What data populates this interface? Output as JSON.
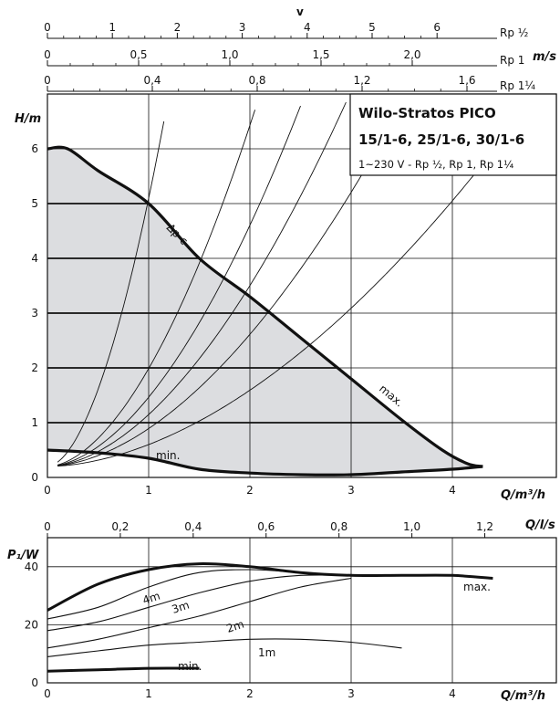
{
  "chart_data": {
    "velocity_scales": {
      "title": "v",
      "unit": "m/s",
      "scales": [
        {
          "pipe": "Rp ½",
          "ticks": [
            "0",
            "1",
            "2",
            "3",
            "4",
            "5",
            "6"
          ]
        },
        {
          "pipe": "Rp 1",
          "ticks": [
            "0",
            "0,5",
            "1,0",
            "1,5",
            "2,0"
          ]
        },
        {
          "pipe": "Rp 1¼",
          "ticks": [
            "0",
            "0,4",
            "0,8",
            "1,2",
            "1,6"
          ]
        }
      ]
    },
    "head_chart": {
      "title_lines": [
        "Wilo-Stratos PICO",
        "15/1-6, 25/1-6, 30/1-6",
        "1~230 V - Rp ½, Rp 1, Rp 1¼"
      ],
      "xlabel": "Q/m³/h",
      "ylabel": "H/m",
      "xlim": [
        0,
        5
      ],
      "ylim": [
        0,
        7
      ],
      "xticks": [
        "0",
        "1",
        "2",
        "3",
        "4"
      ],
      "yticks": [
        "0",
        "1",
        "2",
        "3",
        "4",
        "5",
        "6"
      ],
      "max_curve": [
        [
          0,
          6
        ],
        [
          0.2,
          6
        ],
        [
          0.5,
          5.6
        ],
        [
          1,
          5
        ],
        [
          1.5,
          4
        ],
        [
          2,
          3.3
        ],
        [
          2.5,
          2.55
        ],
        [
          3,
          1.8
        ],
        [
          3.5,
          1.05
        ],
        [
          3.9,
          0.5
        ],
        [
          4.15,
          0.25
        ],
        [
          4.3,
          0.2
        ]
      ],
      "min_curve": [
        [
          0,
          0.5
        ],
        [
          0.5,
          0.45
        ],
        [
          1,
          0.35
        ],
        [
          1.5,
          0.15
        ],
        [
          2,
          0.08
        ],
        [
          2.5,
          0.05
        ],
        [
          3,
          0.05
        ],
        [
          3.5,
          0.1
        ],
        [
          4,
          0.15
        ],
        [
          4.3,
          0.2
        ]
      ],
      "constant_head_levels": [
        1,
        2,
        3,
        4,
        5
      ],
      "labels": {
        "dpc": "Δp-c",
        "max": "max.",
        "min": "min."
      }
    },
    "power_chart": {
      "ylabel": "P₁/W",
      "xlabel": "Q/m³/h",
      "top_label": "Q/l/s",
      "top_ticks": [
        "0",
        "0,2",
        "0,4",
        "0,6",
        "0,8",
        "1,0",
        "1,2"
      ],
      "xticks": [
        "0",
        "1",
        "2",
        "3",
        "4"
      ],
      "yticks": [
        "0",
        "20",
        "40"
      ],
      "xlim": [
        0,
        5
      ],
      "ylim": [
        0,
        50
      ],
      "series": [
        {
          "name": "max.",
          "values": [
            [
              0,
              25
            ],
            [
              0.5,
              34
            ],
            [
              1,
              39
            ],
            [
              1.5,
              41
            ],
            [
              2,
              40
            ],
            [
              2.5,
              38
            ],
            [
              3,
              37
            ],
            [
              3.5,
              37
            ],
            [
              4,
              37
            ],
            [
              4.4,
              36
            ]
          ]
        },
        {
          "name": "4m",
          "values": [
            [
              0,
              22
            ],
            [
              0.5,
              26
            ],
            [
              1,
              33
            ],
            [
              1.5,
              38
            ],
            [
              2,
              39
            ],
            [
              2.5,
              38
            ],
            [
              3,
              37
            ]
          ]
        },
        {
          "name": "3m",
          "values": [
            [
              0,
              18
            ],
            [
              0.5,
              21
            ],
            [
              1,
              26
            ],
            [
              1.5,
              31
            ],
            [
              2,
              35
            ],
            [
              2.5,
              37
            ],
            [
              3,
              37
            ]
          ]
        },
        {
          "name": "2m",
          "values": [
            [
              0,
              12
            ],
            [
              0.5,
              15
            ],
            [
              1,
              19
            ],
            [
              1.5,
              23
            ],
            [
              2,
              28
            ],
            [
              2.5,
              33
            ],
            [
              3,
              36
            ]
          ]
        },
        {
          "name": "1m",
          "values": [
            [
              0,
              9
            ],
            [
              0.5,
              11
            ],
            [
              1,
              13
            ],
            [
              1.5,
              14
            ],
            [
              2,
              15
            ],
            [
              2.5,
              15
            ],
            [
              3,
              14
            ],
            [
              3.5,
              12
            ]
          ]
        },
        {
          "name": "min.",
          "values": [
            [
              0,
              4
            ],
            [
              0.5,
              4.5
            ],
            [
              1,
              5
            ],
            [
              1.5,
              5
            ]
          ]
        }
      ]
    }
  }
}
